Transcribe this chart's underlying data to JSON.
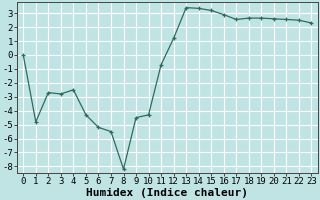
{
  "x": [
    0,
    1,
    2,
    3,
    4,
    5,
    6,
    7,
    8,
    9,
    10,
    11,
    12,
    13,
    14,
    15,
    16,
    17,
    18,
    19,
    20,
    21,
    22,
    23
  ],
  "y": [
    0,
    -4.8,
    -2.7,
    -2.8,
    -2.5,
    -4.3,
    -5.2,
    -5.5,
    -8.2,
    -4.5,
    -4.3,
    -0.7,
    1.2,
    3.4,
    3.35,
    3.2,
    2.9,
    2.55,
    2.65,
    2.65,
    2.6,
    2.55,
    2.5,
    2.3
  ],
  "xlabel": "Humidex (Indice chaleur)",
  "xlim": [
    -0.5,
    23.5
  ],
  "ylim": [
    -8.5,
    3.8
  ],
  "yticks": [
    3,
    2,
    1,
    0,
    -1,
    -2,
    -3,
    -4,
    -5,
    -6,
    -7,
    -8
  ],
  "xticks": [
    0,
    1,
    2,
    3,
    4,
    5,
    6,
    7,
    8,
    9,
    10,
    11,
    12,
    13,
    14,
    15,
    16,
    17,
    18,
    19,
    20,
    21,
    22,
    23
  ],
  "line_color": "#2e6b5e",
  "marker": "+",
  "bg_color": "#c0e4e4",
  "grid_color": "#ffffff",
  "xlabel_fontsize": 8,
  "tick_fontsize": 6.5
}
